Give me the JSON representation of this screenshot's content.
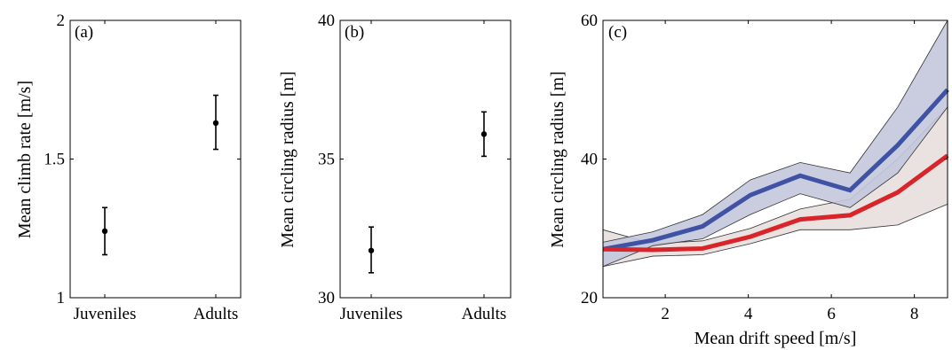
{
  "chart_data": [
    {
      "type": "errorbar",
      "panel_label": "(a)",
      "categories": [
        "Juveniles",
        "Adults"
      ],
      "values": [
        1.24,
        1.63
      ],
      "lower": [
        1.155,
        1.535
      ],
      "upper": [
        1.325,
        1.73
      ],
      "ylabel": "Mean climb rate [m/s]",
      "ylim": [
        1,
        2
      ],
      "yticks": [
        1,
        1.5,
        2
      ],
      "ytick_labels": [
        "1",
        "1.5",
        "2"
      ],
      "grid": false
    },
    {
      "type": "errorbar",
      "panel_label": "(b)",
      "categories": [
        "Juveniles",
        "Adults"
      ],
      "values": [
        31.7,
        35.9
      ],
      "lower": [
        30.9,
        35.1
      ],
      "upper": [
        32.55,
        36.7
      ],
      "ylabel": "Mean circling radius [m]",
      "ylim": [
        30,
        40
      ],
      "yticks": [
        30,
        35,
        40
      ],
      "ytick_labels": [
        "30",
        "35",
        "40"
      ],
      "grid": false
    },
    {
      "type": "line",
      "panel_label": "(c)",
      "xlabel": "Mean drift speed [m/s]",
      "ylabel": "Mean circling radius [m]",
      "xlim": [
        0.5,
        8.8
      ],
      "ylim": [
        20,
        60
      ],
      "xticks": [
        2,
        4,
        6,
        8
      ],
      "xtick_labels": [
        "2",
        "4",
        "6",
        "8"
      ],
      "yticks": [
        20,
        40,
        60
      ],
      "ytick_labels": [
        "20",
        "40",
        "60"
      ],
      "grid": false,
      "series": [
        {
          "color": "#3f52a4",
          "band_color": "#c3c8dc",
          "x": [
            0.5,
            1.7,
            2.9,
            4.05,
            5.25,
            6.45,
            7.6,
            8.8
          ],
          "values": [
            27.0,
            28.3,
            30.3,
            34.8,
            37.6,
            35.5,
            42.0,
            50.0
          ],
          "lower": [
            24.5,
            27.5,
            28.5,
            32.0,
            35.0,
            33.0,
            38.0,
            47.5
          ],
          "upper": [
            28.0,
            29.5,
            32.0,
            37.0,
            39.5,
            38.0,
            47.5,
            60.0
          ]
        },
        {
          "color": "#d8252a",
          "band_color": "#e8dede",
          "x": [
            0.5,
            1.7,
            2.9,
            4.05,
            5.25,
            6.45,
            7.6,
            8.8
          ],
          "values": [
            27.0,
            26.9,
            27.1,
            28.8,
            31.3,
            31.9,
            35.2,
            40.5
          ],
          "lower": [
            24.5,
            26.0,
            26.2,
            27.8,
            29.8,
            29.8,
            30.5,
            33.5
          ],
          "upper": [
            29.8,
            27.8,
            28.2,
            30.0,
            32.8,
            34.2,
            40.0,
            47.5
          ]
        }
      ]
    }
  ]
}
